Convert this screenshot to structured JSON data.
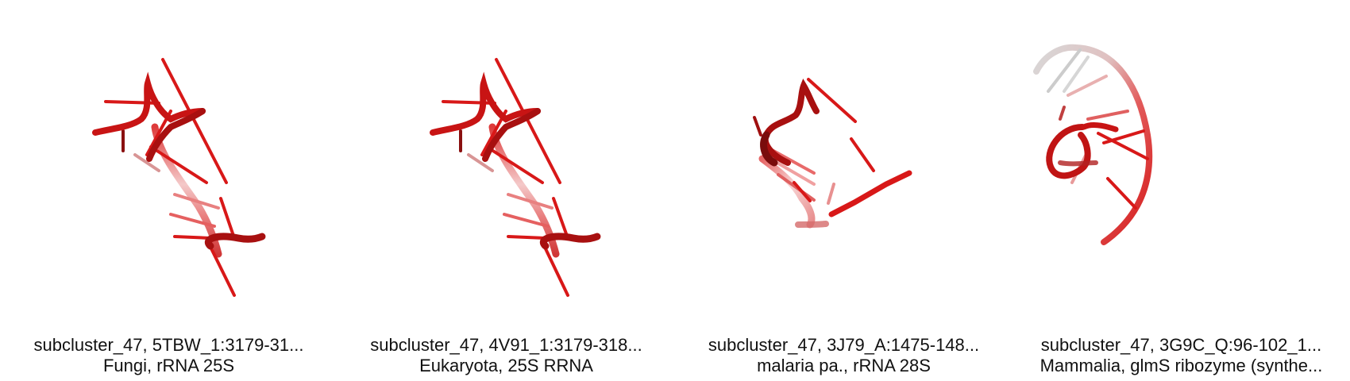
{
  "colors": {
    "strand": "#d81818",
    "strand_dark": "#9e0f0f",
    "strand_faded": "#efb0b0",
    "strand_grey": "#d0d0d0",
    "text": "#111111"
  },
  "panels": [
    {
      "title": "subcluster_47, 5TBW_1:3179-31...",
      "subtitle": "Fungi, rRNA 25S",
      "icon": "rna-helix-structure"
    },
    {
      "title": "subcluster_47, 4V91_1:3179-318...",
      "subtitle": "Eukaryota, 25S RRNA",
      "icon": "rna-helix-structure"
    },
    {
      "title": "subcluster_47, 3J79_A:1475-148...",
      "subtitle": "malaria pa., rRNA 28S",
      "icon": "rna-helix-structure"
    },
    {
      "title": "subcluster_47, 3G9C_Q:96-102_1...",
      "subtitle": "Mammalia, glmS ribozyme (synthe...",
      "icon": "rna-helix-structure"
    }
  ]
}
